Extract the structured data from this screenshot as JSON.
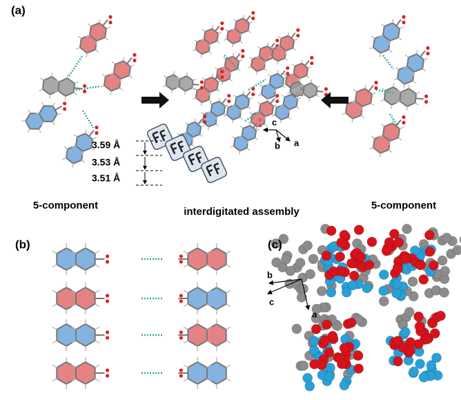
{
  "panels": [
    {
      "label": "(a)",
      "distances": [
        "3.59 Å",
        "3.53 Å",
        "3.51 Å"
      ],
      "captions": [
        "5-component",
        "interdigitated assembly",
        "5-component"
      ],
      "axes": [
        "c",
        "b",
        "a"
      ]
    },
    {
      "label": "(b)"
    },
    {
      "label": "(c)",
      "axes": [
        "b",
        "c",
        "a"
      ]
    }
  ]
}
